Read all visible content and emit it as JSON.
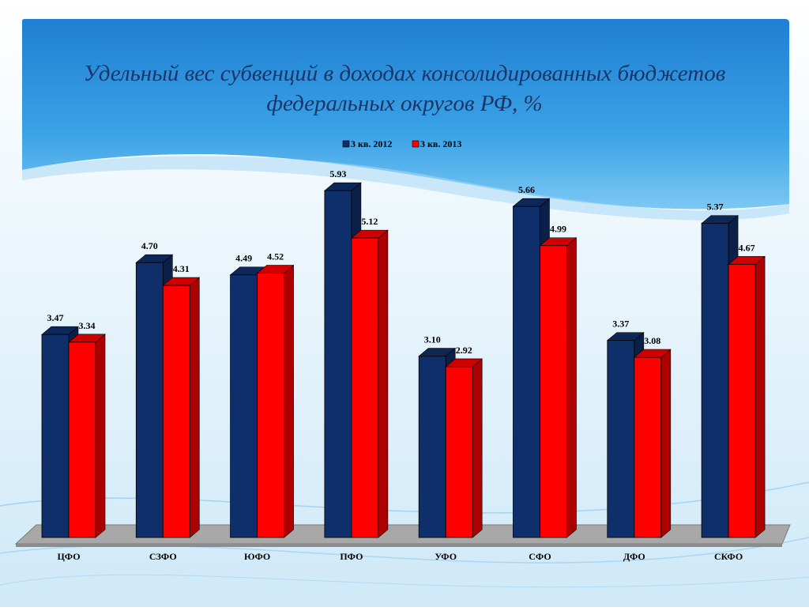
{
  "slide": {
    "title": "Удельный вес субвенций в доходах консолидированных бюджетов федеральных округов РФ, %"
  },
  "colors": {
    "header_blue": "#2f93dd",
    "series_2012": "#0f2f6b",
    "series_2013": "#ff0000",
    "floor": "#a8a8a8"
  },
  "chart_data": {
    "type": "bar",
    "title": "Удельный вес субвенций в доходах консолидированных бюджетов федеральных округов РФ, %",
    "xlabel": "",
    "ylabel": "",
    "categories": [
      "ЦФО",
      "СЗФО",
      "ЮФО",
      "ПФО",
      "УФО",
      "СФО",
      "ДФО",
      "СКФО"
    ],
    "series": [
      {
        "name": "3 кв. 2012",
        "values": [
          3.47,
          4.7,
          4.49,
          5.93,
          3.1,
          5.66,
          3.37,
          5.37
        ],
        "color": "#0f2f6b",
        "labels": [
          "3.47",
          "4.70",
          "4.49",
          "5.93",
          "3.10",
          "5.66",
          "3.37",
          "5.37"
        ]
      },
      {
        "name": "3 кв. 2013",
        "values": [
          3.34,
          4.31,
          4.52,
          5.12,
          2.92,
          4.99,
          3.08,
          4.67
        ],
        "color": "#ff0000",
        "labels": [
          "3.34",
          "4.31",
          "4.52",
          "5.12",
          "2.92",
          "4.99",
          "3.08",
          "4.67"
        ]
      }
    ],
    "ylim": [
      0,
      6
    ],
    "grid": false,
    "legend_position": "top",
    "style": "3d-clustered-column"
  }
}
